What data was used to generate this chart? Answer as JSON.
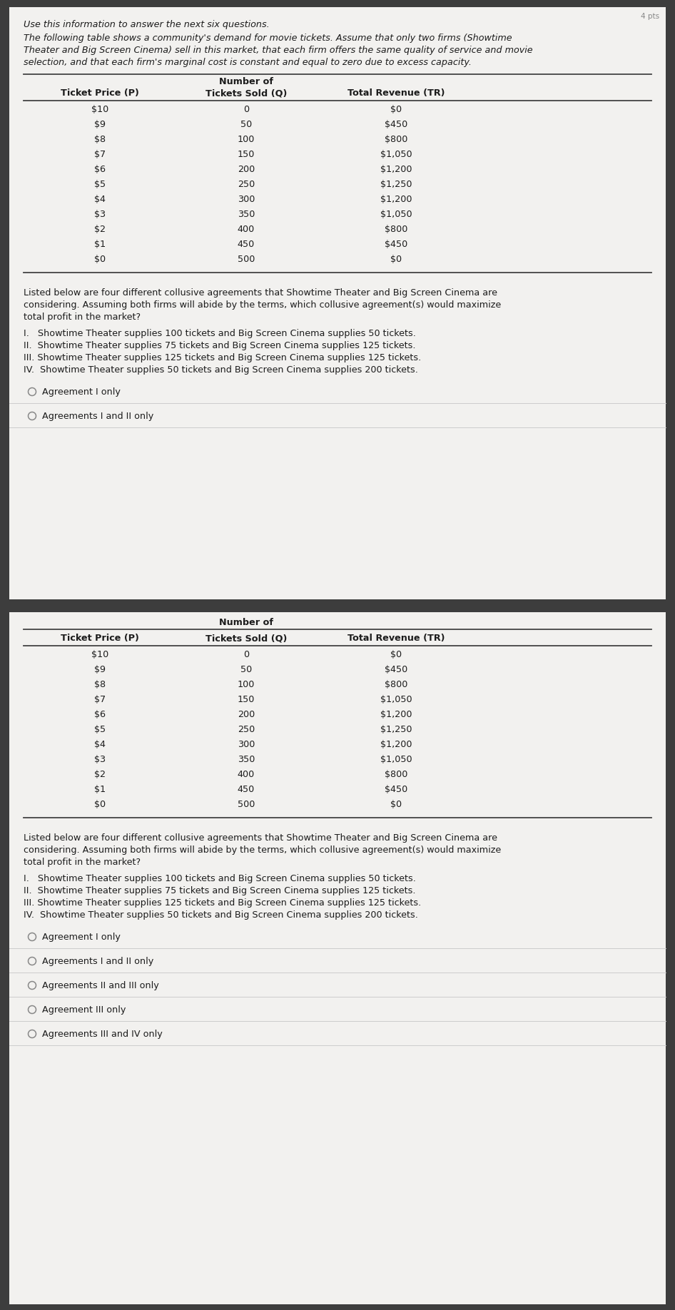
{
  "ticket_prices": [
    "$10",
    "$9",
    "$8",
    "$7",
    "$6",
    "$5",
    "$4",
    "$3",
    "$2",
    "$1",
    "$0"
  ],
  "tickets_sold": [
    "0",
    "50",
    "100",
    "150",
    "200",
    "250",
    "300",
    "350",
    "400",
    "450",
    "500"
  ],
  "total_revenue": [
    "$0",
    "$450",
    "$800",
    "$1,050",
    "$1,200",
    "$1,250",
    "$1,200",
    "$1,050",
    "$800",
    "$450",
    "$0"
  ],
  "intro_line1": "Use this information to answer the next six questions.",
  "intro_line2a": "The following table shows a community's demand for movie tickets. Assume that only two firms (Showtime",
  "intro_line2b": "Theater and Big Screen Cinema) sell in this market, that each firm offers the same quality of service and movie",
  "intro_line2c": "selection, and that each firm's marginal cost is constant and equal to zero due to excess capacity.",
  "q_line1": "Listed below are four different collusive agreements that Showtime Theater and Big Screen Cinema are",
  "q_line2": "considering. Assuming both firms will abide by the terms, which collusive agreement(s) would maximize",
  "q_line3": "total profit in the market?",
  "ag1": "I.   Showtime Theater supplies 100 tickets and Big Screen Cinema supplies 50 tickets.",
  "ag2": "II.  Showtime Theater supplies 75 tickets and Big Screen Cinema supplies 125 tickets.",
  "ag3": "III. Showtime Theater supplies 125 tickets and Big Screen Cinema supplies 125 tickets.",
  "ag4": "IV.  Showtime Theater supplies 50 tickets and Big Screen Cinema supplies 200 tickets.",
  "choices_p1": [
    "Agreement I only",
    "Agreements I and II only"
  ],
  "choices_p2": [
    "Agreement I only",
    "Agreements I and II only",
    "Agreements II and III only",
    "Agreement III only",
    "Agreements III and IV only"
  ],
  "bg_dark": "#3d3d3d",
  "bg_light": "#e5e4e2",
  "panel_bg": "#f2f1ef",
  "text_dark": "#1c1c1c",
  "line_color": "#555555",
  "sep_line_color": "#bbbbbb",
  "corner_text": "4 pts"
}
